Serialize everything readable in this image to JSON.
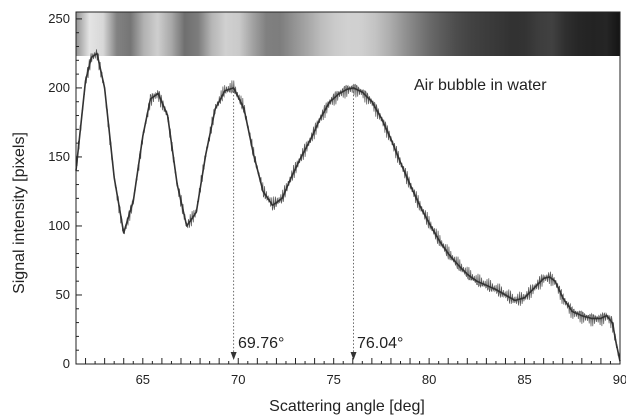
{
  "chart_data": {
    "type": "line",
    "title": "",
    "xlabel": "Scattering angle [deg]",
    "ylabel": "Signal intensity [pixels]",
    "xlim": [
      61.5,
      90
    ],
    "ylim": [
      0,
      255
    ],
    "x_ticks": [
      65,
      70,
      75,
      80,
      85,
      90
    ],
    "x_tick_labels": [
      "65",
      "70",
      "75",
      "80",
      "85",
      "90"
    ],
    "y_ticks": [
      0,
      50,
      100,
      150,
      200,
      250
    ],
    "y_tick_labels": [
      "0",
      "50",
      "100",
      "150",
      "200",
      "250"
    ],
    "grid": false,
    "legend": "none",
    "series": [
      {
        "kind": "smoothed",
        "x": [
          61.5,
          62.0,
          62.3,
          62.6,
          63.0,
          63.5,
          64.0,
          64.5,
          65.0,
          65.4,
          65.8,
          66.3,
          66.8,
          67.3,
          67.8,
          68.3,
          68.8,
          69.3,
          69.76,
          70.3,
          70.8,
          71.3,
          71.8,
          72.3,
          72.8,
          73.3,
          73.8,
          74.3,
          74.8,
          75.3,
          75.7,
          76.04,
          76.5,
          77.0,
          77.5,
          78.0,
          78.5,
          79.0,
          79.5,
          80.0,
          80.5,
          81.0,
          81.5,
          82.0,
          82.5,
          83.0,
          83.5,
          84.0,
          84.5,
          85.0,
          85.5,
          86.0,
          86.3,
          86.6,
          87.0,
          87.5,
          88.0,
          88.5,
          89.0,
          89.3,
          89.6,
          89.8,
          90.0
        ],
        "y": [
          140,
          205,
          222,
          225,
          200,
          135,
          95,
          118,
          165,
          192,
          196,
          180,
          130,
          100,
          110,
          152,
          185,
          198,
          200,
          185,
          152,
          125,
          115,
          120,
          136,
          150,
          163,
          178,
          190,
          196,
          199,
          200,
          197,
          190,
          178,
          163,
          146,
          130,
          115,
          102,
          90,
          80,
          72,
          65,
          60,
          57,
          54,
          50,
          46,
          48,
          55,
          62,
          63,
          60,
          48,
          38,
          35,
          33,
          33,
          35,
          30,
          15,
          2
        ]
      },
      {
        "kind": "raw",
        "noise_amplitude": 6
      }
    ],
    "annotations": [
      {
        "text": "Air bubble in water"
      },
      {
        "text": "69.76°",
        "x": 69.76,
        "y": 200
      },
      {
        "text": "76.04°",
        "x": 76.04,
        "y": 200
      }
    ],
    "colors": {
      "line": "#333333",
      "axis": "#222222",
      "background": "#ffffff"
    }
  }
}
